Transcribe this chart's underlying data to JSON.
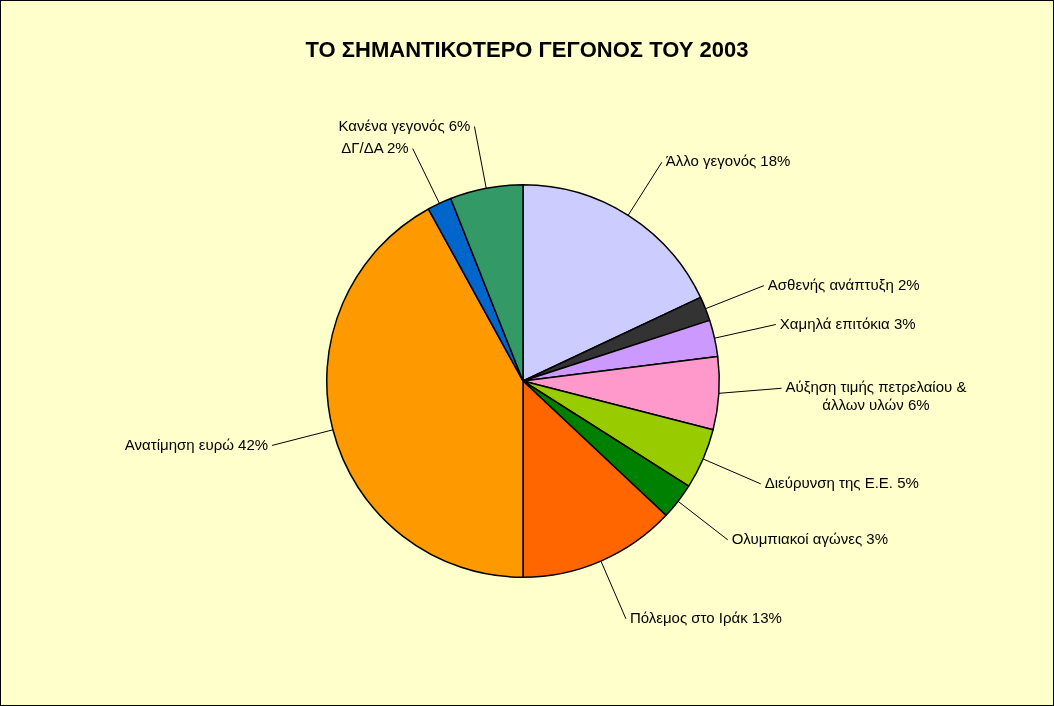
{
  "chart_data": {
    "type": "pie",
    "title": "ΤΟ ΣΗΜΑΝΤΙΚΟΤΕΡΟ ΓΕΓΟΝΟΣ ΤΟΥ 2003",
    "categories": [
      "Άλλο γεγονός",
      "Ασθενής ανάπτυξη",
      "Χαμηλά επιτόκια",
      "Αύξηση τιμής πετρελαίου & άλλων υλών",
      "Διεύρυνση της Ε.Ε.",
      "Ολυμπιακοί αγώνες",
      "Πόλεμος στο Ιράκ",
      "Ανατίμηση ευρώ",
      "ΔΓ/ΔΑ",
      "Κανένα γεγονός"
    ],
    "values": [
      18,
      2,
      3,
      6,
      5,
      3,
      13,
      42,
      2,
      6
    ],
    "value_labels": [
      "18%",
      "2%",
      "3%",
      "6%",
      "5%",
      "3%",
      "13%",
      "42%",
      "2%",
      "6%"
    ],
    "colors": [
      "#ccccff",
      "#333333",
      "#cc99ff",
      "#ff99cc",
      "#99cc00",
      "#008000",
      "#ff6600",
      "#ff9900",
      "#0066cc",
      "#339966"
    ],
    "legend": false
  }
}
